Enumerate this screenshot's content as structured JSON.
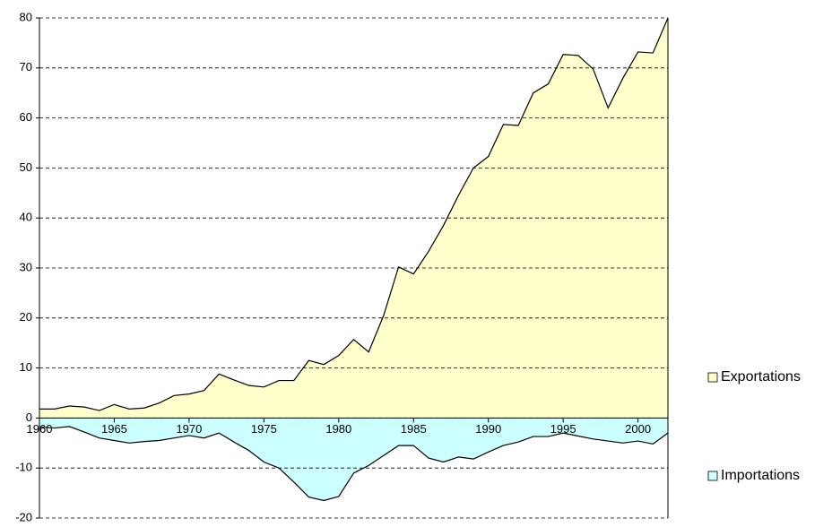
{
  "chart_data": {
    "type": "area",
    "x": [
      1960,
      1961,
      1962,
      1963,
      1964,
      1965,
      1966,
      1967,
      1968,
      1969,
      1970,
      1971,
      1972,
      1973,
      1974,
      1975,
      1976,
      1977,
      1978,
      1979,
      1980,
      1981,
      1982,
      1983,
      1984,
      1985,
      1986,
      1987,
      1988,
      1989,
      1990,
      1991,
      1992,
      1993,
      1994,
      1995,
      1996,
      1997,
      1998,
      1999,
      2000,
      2001,
      2002
    ],
    "series": [
      {
        "name": "Exportations",
        "color": "#ffffcc",
        "values": [
          1.8,
          1.8,
          2.4,
          2.2,
          1.5,
          2.7,
          1.8,
          2.0,
          3.0,
          4.5,
          4.8,
          5.5,
          8.8,
          7.6,
          6.5,
          6.2,
          7.5,
          7.5,
          11.5,
          10.7,
          12.5,
          15.7,
          13.2,
          20.5,
          30.2,
          28.8,
          33.3,
          38.5,
          44.5,
          50.0,
          52.3,
          58.7,
          58.5,
          65.0,
          66.8,
          72.7,
          72.5,
          69.8,
          62.0,
          68.0,
          73.2,
          73.0,
          80.0
        ]
      },
      {
        "name": "Importations",
        "color": "#ccffff",
        "values": [
          -1.8,
          -2.0,
          -1.7,
          -2.8,
          -4.0,
          -4.5,
          -5.0,
          -4.7,
          -4.5,
          -4.0,
          -3.5,
          -4.0,
          -3.0,
          -4.8,
          -6.5,
          -8.8,
          -10.0,
          -12.8,
          -15.8,
          -16.5,
          -15.7,
          -11.0,
          -9.5,
          -7.5,
          -5.5,
          -5.5,
          -8.0,
          -8.8,
          -7.8,
          -8.2,
          -6.8,
          -5.5,
          -4.8,
          -3.7,
          -3.7,
          -3.0,
          -3.6,
          -4.2,
          -4.6,
          -5.0,
          -4.6,
          -5.2,
          -3.0
        ]
      }
    ],
    "xlim": [
      1960,
      2002
    ],
    "xticks": [
      1960,
      1965,
      1970,
      1975,
      1980,
      1985,
      1990,
      1995,
      2000
    ],
    "ylim": [
      -20,
      80
    ],
    "yticks": [
      -20,
      -10,
      0,
      10,
      20,
      30,
      40,
      50,
      60,
      70,
      80
    ],
    "grid": true,
    "legend": "right"
  }
}
